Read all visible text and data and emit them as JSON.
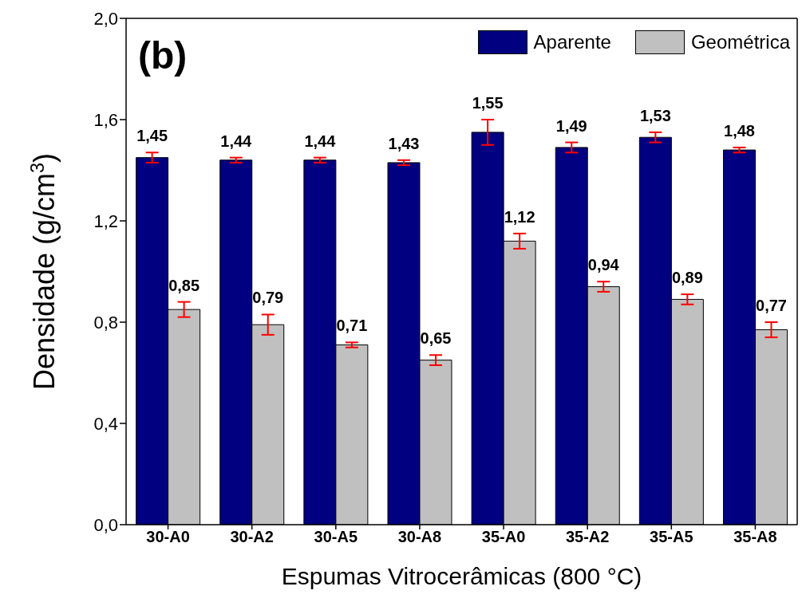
{
  "chart_data": {
    "type": "bar",
    "xlabel": "Espumas Vitrocerâmicas (800 °C)",
    "ylabel": "Densidade (g/cm$^{3}$)",
    "annotations": [
      "(b)"
    ],
    "categories": [
      "30-A0",
      "30-A2",
      "30-A5",
      "30-A8",
      "35-A0",
      "35-A2",
      "35-A5",
      "35-A8"
    ],
    "series": [
      {
        "name": "Aparente",
        "color": "#000080",
        "values": [
          1.45,
          1.44,
          1.44,
          1.43,
          1.55,
          1.49,
          1.53,
          1.48
        ],
        "value_labels": [
          "1,45",
          "1,44",
          "1,44",
          "1,43",
          "1,55",
          "1,49",
          "1,53",
          "1,48"
        ],
        "errors": [
          0.02,
          0.01,
          0.01,
          0.01,
          0.05,
          0.02,
          0.02,
          0.01
        ]
      },
      {
        "name": "Geométrica",
        "color": "#c0c0c0",
        "values": [
          0.85,
          0.79,
          0.71,
          0.65,
          1.12,
          0.94,
          0.89,
          0.77
        ],
        "value_labels": [
          "0,85",
          "0,79",
          "0,71",
          "0,65",
          "1,12",
          "0,94",
          "0,89",
          "0,77"
        ],
        "errors": [
          0.03,
          0.04,
          0.01,
          0.02,
          0.03,
          0.02,
          0.02,
          0.03
        ]
      }
    ],
    "ylim": [
      0,
      2
    ],
    "yticks": [
      {
        "value": 0,
        "label": "0,0"
      },
      {
        "value": 0.4,
        "label": "0,4"
      },
      {
        "value": 0.8,
        "label": "0,8"
      },
      {
        "value": 1.2,
        "label": "1,2"
      },
      {
        "value": 1.6,
        "label": "1,6"
      },
      {
        "value": 2,
        "label": "2,0"
      }
    ],
    "legend": "top right",
    "grid": false
  }
}
